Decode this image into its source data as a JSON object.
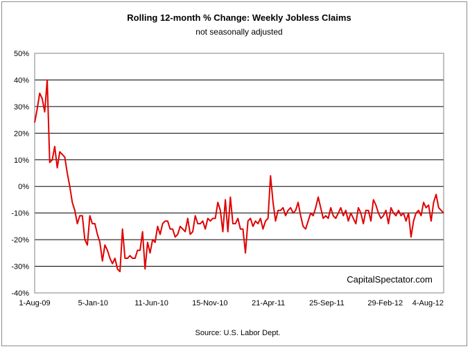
{
  "chart_data": {
    "type": "line",
    "title": "Rolling 12-month %  Change: Weekly Jobless Claims",
    "subtitle": "not seasonally adjusted",
    "source": "Source: U.S. Labor Dept.",
    "watermark": "CapitalSpectator.com",
    "xlabel": "",
    "ylabel": "",
    "ylim": [
      -40,
      50
    ],
    "yticks": [
      50,
      40,
      30,
      20,
      10,
      0,
      -10,
      -20,
      -30,
      -40
    ],
    "ytick_labels": [
      "50%",
      "40%",
      "30%",
      "20%",
      "10%",
      "0%",
      "-10%",
      "-20%",
      "-30%",
      "-40%"
    ],
    "xtick_labels": [
      "1-Aug-09",
      "5-Jan-10",
      "11-Jun-10",
      "15-Nov-10",
      "21-Apr-11",
      "25-Sep-11",
      "29-Feb-12",
      "4-Aug-12"
    ],
    "grid": true,
    "line_color": "#e00000",
    "series": [
      {
        "values": [
          24,
          29,
          35,
          33,
          28,
          40,
          9,
          10,
          15,
          7,
          13,
          12,
          11,
          5,
          0,
          -6,
          -9,
          -14,
          -11,
          -11,
          -20,
          -22,
          -11,
          -14,
          -14,
          -18,
          -21,
          -28,
          -22,
          -24,
          -27,
          -29,
          -27,
          -31,
          -32,
          -16,
          -27,
          -27,
          -26,
          -27,
          -27,
          -24,
          -24,
          -17,
          -31,
          -21,
          -25,
          -20,
          -21,
          -15,
          -18,
          -14,
          -13,
          -13,
          -16,
          -16,
          -19,
          -18,
          -15,
          -16,
          -17,
          -12,
          -18,
          -17,
          -11,
          -14,
          -14,
          -13,
          -16,
          -12,
          -13,
          -12,
          -12,
          -6,
          -9,
          -17,
          -5,
          -17,
          -4,
          -14,
          -14,
          -12,
          -16,
          -16,
          -25,
          -13,
          -12,
          -15,
          -13,
          -14,
          -12,
          -16,
          -13,
          -12,
          4,
          -6,
          -13,
          -9,
          -9,
          -8,
          -11,
          -9,
          -8,
          -10,
          -9,
          -6,
          -11,
          -15,
          -16,
          -13,
          -10,
          -11,
          -8,
          -4,
          -8,
          -12,
          -11,
          -12,
          -8,
          -11,
          -12,
          -10,
          -8,
          -11,
          -9,
          -13,
          -10,
          -12,
          -14,
          -8,
          -10,
          -14,
          -9,
          -9,
          -13,
          -5,
          -7,
          -10,
          -12,
          -11,
          -9,
          -14,
          -8,
          -10,
          -11,
          -9,
          -11,
          -10,
          -13,
          -10,
          -19,
          -13,
          -10,
          -9,
          -11,
          -6,
          -8,
          -7,
          -13,
          -6,
          -3,
          -8,
          -9,
          -10
        ],
        "color": "#e00000"
      }
    ]
  }
}
